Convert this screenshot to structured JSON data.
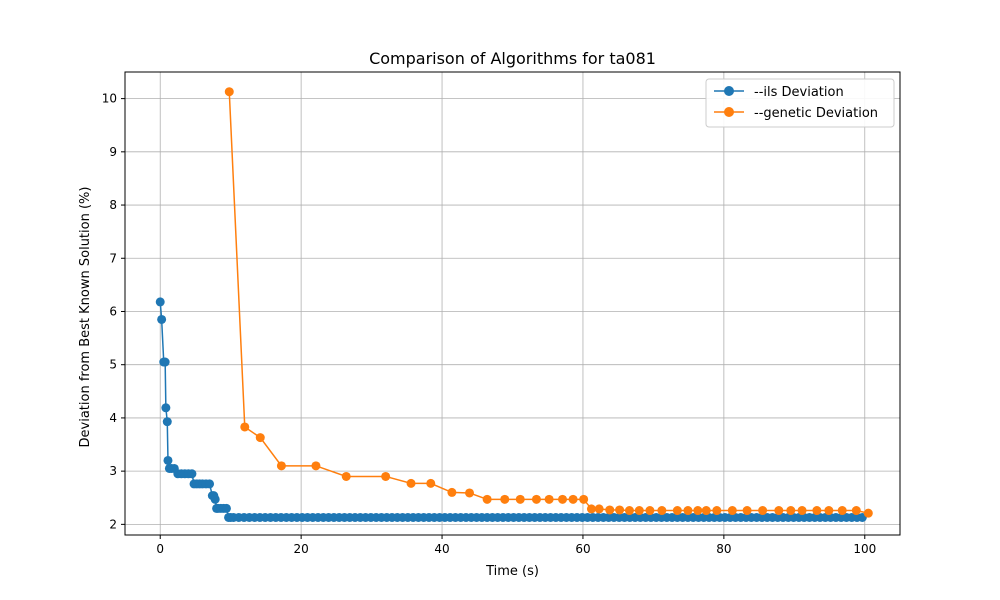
{
  "chart_data": {
    "type": "line",
    "title": "Comparison of Algorithms for ta081",
    "xlabel": "Time (s)",
    "ylabel": "Deviation from Best Known Solution (%)",
    "xlim": [
      -5,
      105
    ],
    "ylim": [
      1.8,
      10.5
    ],
    "xticks": [
      0,
      20,
      40,
      60,
      80,
      100
    ],
    "yticks": [
      2,
      3,
      4,
      5,
      6,
      7,
      8,
      9,
      10
    ],
    "grid": true,
    "legend": "top-right",
    "series": [
      {
        "name": "--ils Deviation",
        "color": "#1f77b4",
        "x": [
          0.0,
          0.2,
          0.5,
          0.7,
          0.8,
          1.0,
          1.1,
          1.3,
          1.6,
          2.0,
          2.5,
          3.0,
          3.5,
          4.0,
          4.5,
          4.8,
          5.2,
          5.6,
          6.0,
          6.5,
          7.0,
          7.4,
          7.6,
          7.8,
          8.0,
          8.2,
          8.6,
          9.0,
          9.4,
          9.7,
          10.0,
          10.4
        ],
        "y": [
          6.18,
          5.85,
          5.05,
          5.05,
          4.19,
          3.93,
          3.2,
          3.05,
          3.05,
          3.05,
          2.95,
          2.95,
          2.95,
          2.95,
          2.95,
          2.76,
          2.76,
          2.76,
          2.76,
          2.76,
          2.76,
          2.54,
          2.54,
          2.47,
          2.3,
          2.3,
          2.3,
          2.3,
          2.3,
          2.13,
          2.13,
          2.13
        ],
        "flat_tail": {
          "y": 2.13,
          "x_start": 10.4,
          "x_end": 100.0,
          "step": 0.75
        }
      },
      {
        "name": "--genetic Deviation",
        "color": "#ff7f0e",
        "x": [
          9.8,
          12.0,
          14.2,
          17.2,
          22.1,
          26.4,
          32.0,
          35.6,
          38.4,
          41.4,
          43.9,
          46.4,
          48.9,
          51.1,
          53.4,
          55.2,
          57.1,
          58.6,
          60.1,
          61.2,
          62.3,
          63.8,
          65.2,
          66.6,
          68.0,
          69.5,
          71.2,
          73.4,
          74.9,
          76.3,
          77.5,
          79.0,
          81.2,
          83.3,
          85.5,
          87.8,
          89.5,
          91.1,
          93.2,
          94.9,
          96.8,
          98.8,
          100.5
        ],
        "y": [
          10.13,
          3.83,
          3.63,
          3.1,
          3.1,
          2.9,
          2.9,
          2.77,
          2.77,
          2.6,
          2.59,
          2.47,
          2.47,
          2.47,
          2.47,
          2.47,
          2.47,
          2.47,
          2.47,
          2.29,
          2.29,
          2.27,
          2.27,
          2.26,
          2.26,
          2.26,
          2.26,
          2.26,
          2.26,
          2.26,
          2.26,
          2.26,
          2.26,
          2.26,
          2.26,
          2.26,
          2.26,
          2.26,
          2.26,
          2.26,
          2.26,
          2.26,
          2.21
        ]
      }
    ]
  }
}
